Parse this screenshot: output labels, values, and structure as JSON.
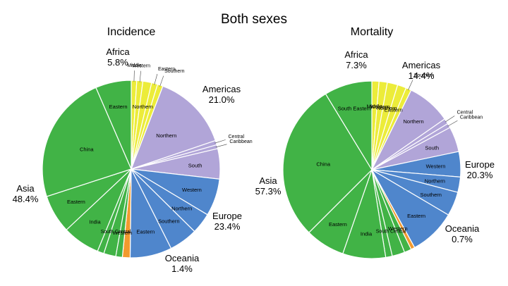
{
  "figure_title": "Both sexes",
  "colors": {
    "Africa": "#ecec3a",
    "Americas": "#b1a5d8",
    "Europe": "#4f86cc",
    "Oceania": "#f29a2e",
    "Asia": "#41b346",
    "slice_border": "#ffffff"
  },
  "chart_data": [
    {
      "type": "pie",
      "title": "Incidence",
      "regions": [
        {
          "name": "Africa",
          "percent": "5.8%"
        },
        {
          "name": "Americas",
          "percent": "21.0%"
        },
        {
          "name": "Europe",
          "percent": "23.4%"
        },
        {
          "name": "Oceania",
          "percent": "1.4%"
        },
        {
          "name": "Asia",
          "percent": "48.4%"
        }
      ],
      "slices": [
        {
          "region": "Africa",
          "label": "Middle",
          "value": 1.0
        },
        {
          "region": "Africa",
          "label": "Western",
          "value": 1.1
        },
        {
          "region": "Africa",
          "label": "Northern",
          "value": 1.6
        },
        {
          "region": "Africa",
          "label": "Eastern",
          "value": 1.1
        },
        {
          "region": "Africa",
          "label": "Southern",
          "value": 1.0
        },
        {
          "region": "Americas",
          "label": "Northern",
          "value": 14.0
        },
        {
          "region": "Americas",
          "label": "Central",
          "value": 0.8
        },
        {
          "region": "Americas",
          "label": "Caribbean",
          "value": 0.7
        },
        {
          "region": "Americas",
          "label": "South",
          "value": 5.5
        },
        {
          "region": "Europe",
          "label": "Western",
          "value": 6.8
        },
        {
          "region": "Europe",
          "label": "Northern",
          "value": 3.8
        },
        {
          "region": "Europe",
          "label": "Southern",
          "value": 5.2
        },
        {
          "region": "Europe",
          "label": "Eastern",
          "value": 7.6
        },
        {
          "region": "Oceania",
          "label": "",
          "value": 1.4
        },
        {
          "region": "Asia",
          "label": "Western",
          "value": 1.2
        },
        {
          "region": "Asia",
          "label": "South Central",
          "value": 2.2
        },
        {
          "region": "Asia",
          "label": "",
          "value": 1.2
        },
        {
          "region": "Asia",
          "label": "India",
          "value": 6.8
        },
        {
          "region": "Asia",
          "label": "Eastern",
          "value": 7.0
        },
        {
          "region": "Asia",
          "label": "China",
          "value": 23.5
        },
        {
          "region": "Asia",
          "label": "Eastern",
          "value": 6.5
        }
      ]
    },
    {
      "type": "pie",
      "title": "Mortality",
      "regions": [
        {
          "name": "Africa",
          "percent": "7.3%"
        },
        {
          "name": "Americas",
          "percent": "14.4%"
        },
        {
          "name": "Europe",
          "percent": "20.3%"
        },
        {
          "name": "Oceania",
          "percent": "0.7%"
        },
        {
          "name": "Asia",
          "percent": "57.3%"
        }
      ],
      "slices": [
        {
          "region": "Africa",
          "label": "Middle",
          "value": 1.3
        },
        {
          "region": "Africa",
          "label": "Western",
          "value": 1.5
        },
        {
          "region": "Africa",
          "label": "Northern",
          "value": 1.9
        },
        {
          "region": "Africa",
          "label": "Eastern",
          "value": 1.6
        },
        {
          "region": "Africa",
          "label": "Southern",
          "value": 1.0
        },
        {
          "region": "Americas",
          "label": "Northern",
          "value": 8.0
        },
        {
          "region": "Americas",
          "label": "Central",
          "value": 1.0
        },
        {
          "region": "Americas",
          "label": "Caribbean",
          "value": 0.8
        },
        {
          "region": "Americas",
          "label": "South",
          "value": 4.6
        },
        {
          "region": "Europe",
          "label": "Western",
          "value": 4.6
        },
        {
          "region": "Europe",
          "label": "Northern",
          "value": 2.8
        },
        {
          "region": "Europe",
          "label": "Southern",
          "value": 4.4
        },
        {
          "region": "Europe",
          "label": "Eastern",
          "value": 8.5
        },
        {
          "region": "Oceania",
          "label": "",
          "value": 0.7
        },
        {
          "region": "Asia",
          "label": "Western",
          "value": 1.3
        },
        {
          "region": "Asia",
          "label": "South Central",
          "value": 2.3
        },
        {
          "region": "Asia",
          "label": "",
          "value": 1.2
        },
        {
          "region": "Asia",
          "label": "India",
          "value": 7.8
        },
        {
          "region": "Asia",
          "label": "Eastern",
          "value": 7.2
        },
        {
          "region": "Asia",
          "label": "China",
          "value": 28.8
        },
        {
          "region": "Asia",
          "label": "South Eastern",
          "value": 8.7
        }
      ]
    }
  ]
}
